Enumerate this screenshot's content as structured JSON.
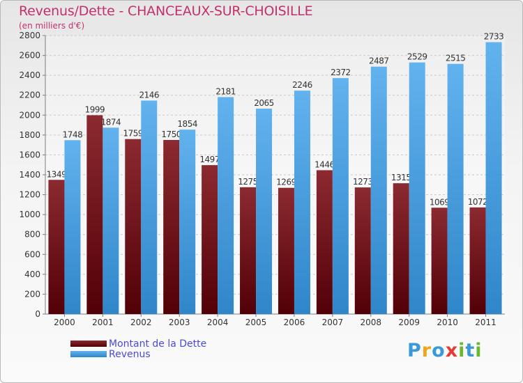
{
  "chart_data": {
    "type": "bar",
    "title": "Revenus/Dette - CHANCEAUX-SUR-CHOISILLE",
    "subtitle": "(en milliers d'€)",
    "categories": [
      "2000",
      "2001",
      "2002",
      "2003",
      "2004",
      "2005",
      "2006",
      "2007",
      "2008",
      "2009",
      "2010",
      "2011"
    ],
    "series": [
      {
        "name": "Montant de la Dette",
        "color": "#6b0f14",
        "values": [
          1349,
          1999,
          1759,
          1750,
          1497,
          1275,
          1269,
          1446,
          1273,
          1315,
          1069,
          1072
        ]
      },
      {
        "name": "Revenus",
        "color": "#4ea3e0",
        "values": [
          1748,
          1874,
          2146,
          1854,
          2181,
          2065,
          2246,
          2372,
          2487,
          2529,
          2515,
          2733
        ]
      }
    ],
    "ylim": [
      0,
      2800
    ],
    "yticks": [
      0,
      200,
      400,
      600,
      800,
      1000,
      1200,
      1400,
      1600,
      1800,
      2000,
      2200,
      2400,
      2600,
      2800
    ],
    "grid": true,
    "legend_position": "bottom-left"
  },
  "logo": {
    "text": "Proxiti",
    "colors": [
      "#3a9ad9",
      "#f0a41b",
      "#6ab82e",
      "#e63b33"
    ]
  }
}
